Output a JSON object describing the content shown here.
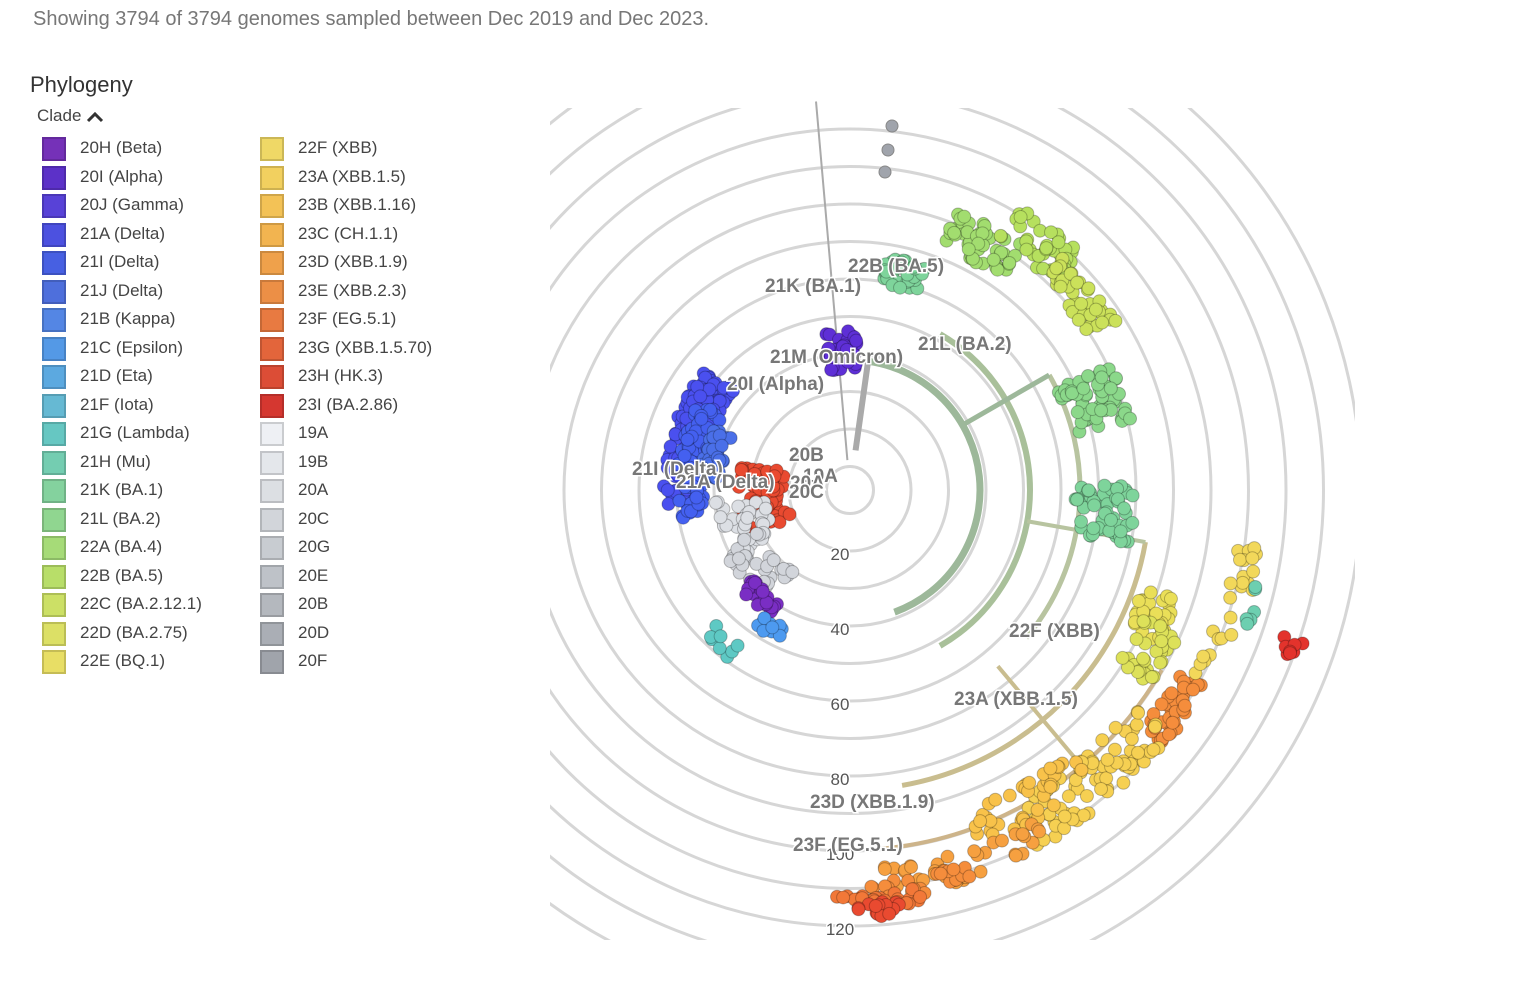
{
  "header": {
    "summary": "Showing 3794 of 3794 genomes sampled between Dec 2019 and Dec 2023."
  },
  "panel": {
    "title": "Phylogeny"
  },
  "legend": {
    "title": "Clade",
    "items": [
      {
        "label": "20H (Beta)",
        "color": "#7a2ec4"
      },
      {
        "label": "20I (Alpha)",
        "color": "#5e2fd6"
      },
      {
        "label": "20J (Gamma)",
        "color": "#5940e6"
      },
      {
        "label": "21A (Delta)",
        "color": "#4a50ef"
      },
      {
        "label": "21I (Delta)",
        "color": "#4460f0"
      },
      {
        "label": "21J (Delta)",
        "color": "#4a6fe8"
      },
      {
        "label": "21B (Kappa)",
        "color": "#4f86ef"
      },
      {
        "label": "21C (Epsilon)",
        "color": "#4d9af0"
      },
      {
        "label": "21D (Eta)",
        "color": "#55aae8"
      },
      {
        "label": "21F (Iota)",
        "color": "#5ebbd8"
      },
      {
        "label": "21G (Lambda)",
        "color": "#5ec9c4"
      },
      {
        "label": "21H (Mu)",
        "color": "#6dcfb0"
      },
      {
        "label": "21K (BA.1)",
        "color": "#7ed49b"
      },
      {
        "label": "21L (BA.2)",
        "color": "#8bd88a"
      },
      {
        "label": "22A (BA.4)",
        "color": "#a2dd6f"
      },
      {
        "label": "22B (BA.5)",
        "color": "#b6e05e"
      },
      {
        "label": "22C (BA.2.12.1)",
        "color": "#cbe15a"
      },
      {
        "label": "22D (BA.2.75)",
        "color": "#dde159"
      },
      {
        "label": "22E (BQ.1)",
        "color": "#eadf58"
      },
      {
        "label": "22F (XBB)",
        "color": "#f2d85a"
      },
      {
        "label": "23A (XBB.1.5)",
        "color": "#f6d052"
      },
      {
        "label": "23B (XBB.1.16)",
        "color": "#f8c24a"
      },
      {
        "label": "23C (CH.1.1)",
        "color": "#f8b344"
      },
      {
        "label": "23D (XBB.1.9)",
        "color": "#f6a040"
      },
      {
        "label": "23E (XBB.2.3)",
        "color": "#f58d3c"
      },
      {
        "label": "23F (EG.5.1)",
        "color": "#f27838"
      },
      {
        "label": "23G (XBB.1.5.70)",
        "color": "#ee6234"
      },
      {
        "label": "23H (HK.3)",
        "color": "#e94a30"
      },
      {
        "label": "23I (BA.2.86)",
        "color": "#e3332c"
      },
      {
        "label": "19A",
        "color": "#eef0f4"
      },
      {
        "label": "19B",
        "color": "#e4e7ec"
      },
      {
        "label": "20A",
        "color": "#dcdfe4"
      },
      {
        "label": "20C",
        "color": "#d2d5db"
      },
      {
        "label": "20G",
        "color": "#c8ccd2"
      },
      {
        "label": "20E",
        "color": "#bec2c9"
      },
      {
        "label": "20B",
        "color": "#b4b8bf"
      },
      {
        "label": "20D",
        "color": "#aaaeb6"
      },
      {
        "label": "20F",
        "color": "#a0a4ac"
      }
    ]
  },
  "tree": {
    "ring_ticks": [
      20,
      40,
      60,
      80,
      100,
      120
    ],
    "labels": [
      "22B (BA.5)",
      "21K (BA.1)",
      "21L (BA.2)",
      "21M (Omicron)",
      "20I (Alpha)",
      "21I (Delta)",
      "21A (Delta)",
      "20B",
      "19A",
      "20A",
      "20C",
      "22F (XBB)",
      "23A (XBB.1.5)",
      "23D (XBB.1.9)",
      "23F (EG.5.1)"
    ]
  }
}
